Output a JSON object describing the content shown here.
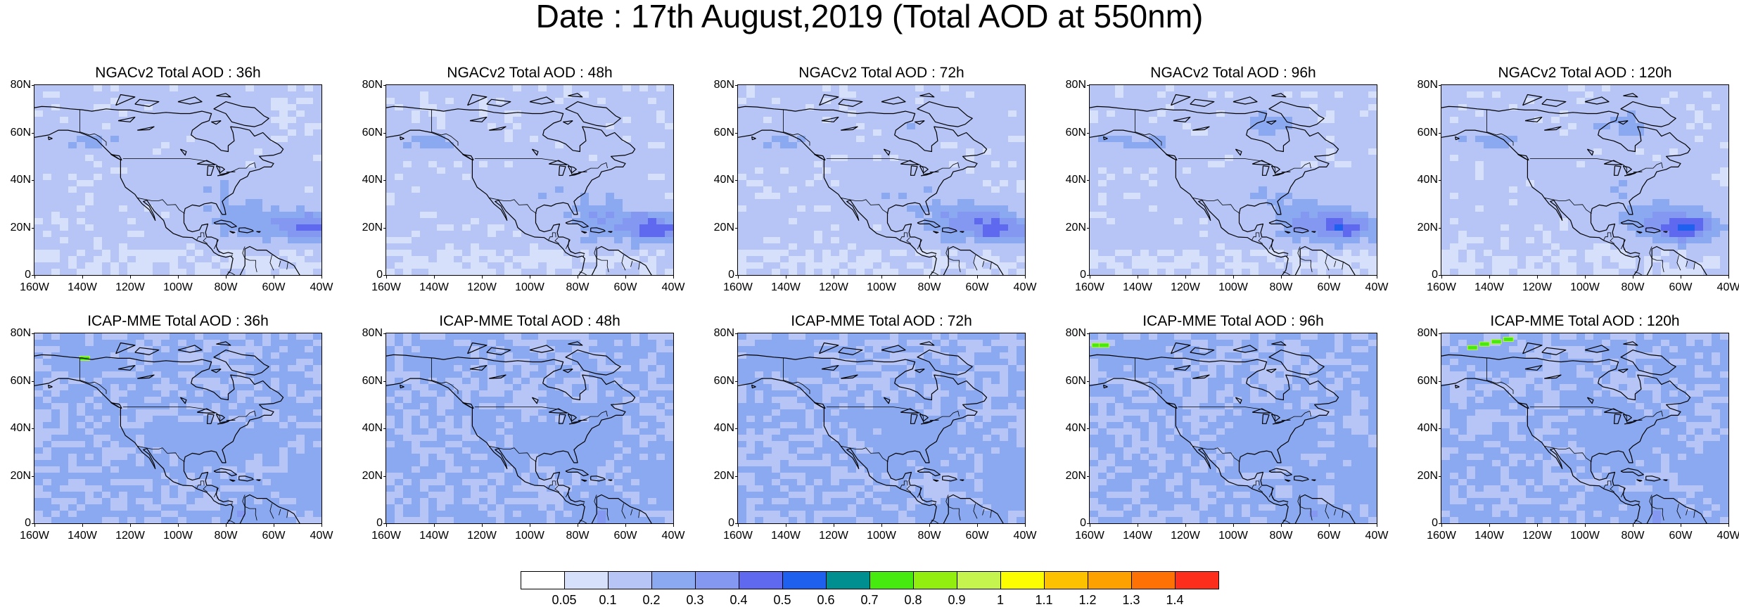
{
  "title": "Date : 17th August,2019 (Total AOD at 550nm)",
  "lat_ticks": [
    "80N",
    "60N",
    "40N",
    "20N",
    "0"
  ],
  "lon_ticks": [
    "160W",
    "140W",
    "120W",
    "100W",
    "80W",
    "60W",
    "40W"
  ],
  "panels": [
    {
      "title": "NGACv2 Total AOD : 36h",
      "model": "NGACv2",
      "lead": "36h",
      "smoke": []
    },
    {
      "title": "NGACv2 Total AOD : 48h",
      "model": "NGACv2",
      "lead": "48h",
      "smoke": []
    },
    {
      "title": "NGACv2 Total AOD : 72h",
      "model": "NGACv2",
      "lead": "72h",
      "smoke": []
    },
    {
      "title": "NGACv2 Total AOD : 96h",
      "model": "NGACv2",
      "lead": "96h",
      "smoke": []
    },
    {
      "title": "NGACv2 Total AOD : 120h",
      "model": "NGACv2",
      "lead": "120h",
      "smoke": []
    },
    {
      "title": "ICAP-MME Total AOD : 36h",
      "model": "ICAP-MME",
      "lead": "36h",
      "smoke": [
        [
          -139,
          69.5
        ]
      ]
    },
    {
      "title": "ICAP-MME Total AOD : 48h",
      "model": "ICAP-MME",
      "lead": "48h",
      "smoke": []
    },
    {
      "title": "ICAP-MME Total AOD : 72h",
      "model": "ICAP-MME",
      "lead": "72h",
      "smoke": []
    },
    {
      "title": "ICAP-MME Total AOD : 96h",
      "model": "ICAP-MME",
      "lead": "96h",
      "smoke": [
        [
          -157,
          75
        ],
        [
          -154,
          75
        ]
      ]
    },
    {
      "title": "ICAP-MME Total AOD : 120h",
      "model": "ICAP-MME",
      "lead": "120h",
      "smoke": [
        [
          -147,
          74
        ],
        [
          -142,
          75.5
        ],
        [
          -137,
          76.5
        ],
        [
          -132,
          77.5
        ]
      ]
    }
  ],
  "legend": {
    "colors": [
      "#ffffff",
      "#d6e0fa",
      "#b6c5f6",
      "#8aa9f0",
      "#8497f1",
      "#5f69ef",
      "#1f60ee",
      "#008f91",
      "#47ea0f",
      "#91ee0e",
      "#c4f44d",
      "#fcfd00",
      "#fdc100",
      "#fca100",
      "#fd7105",
      "#fd2e1b"
    ],
    "labels": [
      "0.05",
      "0.1",
      "0.2",
      "0.3",
      "0.4",
      "0.5",
      "0.6",
      "0.7",
      "0.8",
      "0.9",
      "1",
      "1.1",
      "1.2",
      "1.3",
      "1.4"
    ]
  }
}
